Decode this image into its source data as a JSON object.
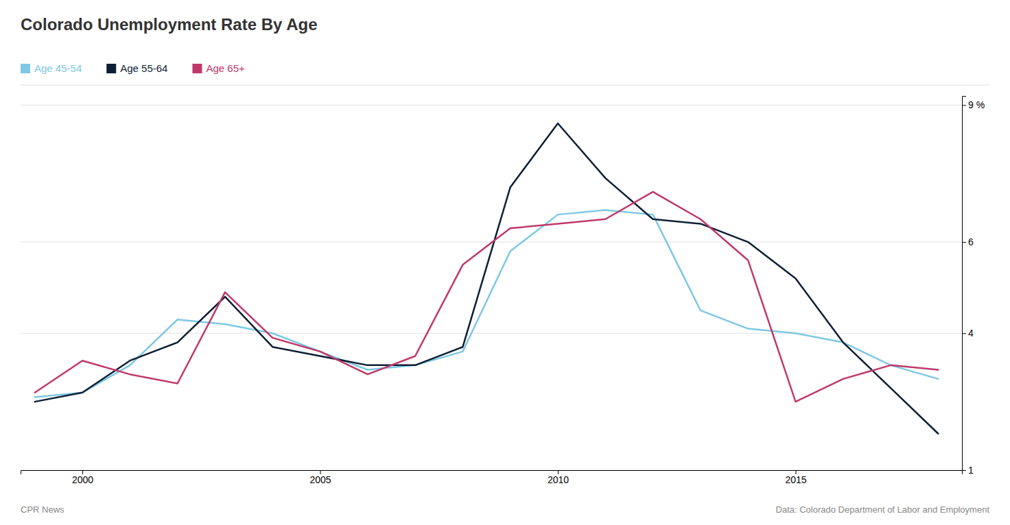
{
  "chart_data": {
    "type": "line",
    "title": "Colorado Unemployment Rate By Age",
    "x": [
      1999,
      2000,
      2001,
      2002,
      2003,
      2004,
      2005,
      2006,
      2007,
      2008,
      2009,
      2010,
      2011,
      2012,
      2013,
      2014,
      2015,
      2016,
      2017,
      2018
    ],
    "series": [
      {
        "name": "Age 45-54",
        "color": "#7ec8e3",
        "values": [
          2.6,
          2.7,
          3.3,
          4.3,
          4.2,
          4.0,
          3.6,
          3.2,
          3.3,
          3.6,
          5.8,
          6.6,
          6.7,
          6.6,
          4.5,
          4.1,
          4.0,
          3.8,
          3.3,
          3.0
        ]
      },
      {
        "name": "Age 55-64",
        "color": "#0d1f35",
        "values": [
          2.5,
          2.7,
          3.4,
          3.8,
          4.8,
          3.7,
          3.5,
          3.3,
          3.3,
          3.7,
          7.2,
          8.6,
          7.4,
          6.5,
          6.4,
          6.0,
          5.2,
          3.8,
          2.8,
          1.8
        ]
      },
      {
        "name": "Age 65+",
        "color": "#c0386b",
        "values": [
          2.7,
          3.4,
          3.1,
          2.9,
          4.9,
          3.9,
          3.6,
          3.1,
          3.5,
          5.5,
          6.3,
          6.4,
          6.5,
          7.1,
          6.5,
          5.6,
          2.5,
          3.0,
          3.3,
          3.2
        ]
      }
    ],
    "xlim": [
      1998.7,
      2018.5
    ],
    "xticks": [
      2000,
      2005,
      2010,
      2015
    ],
    "ylim": [
      1,
      9.2
    ],
    "yticks": [
      1,
      4,
      6,
      {
        "value": 9,
        "label": "9 %"
      }
    ],
    "grid": true,
    "legend": "top-left",
    "annotations": [
      "CPR News",
      "Data: Colorado Department of Labor and Employment"
    ]
  }
}
